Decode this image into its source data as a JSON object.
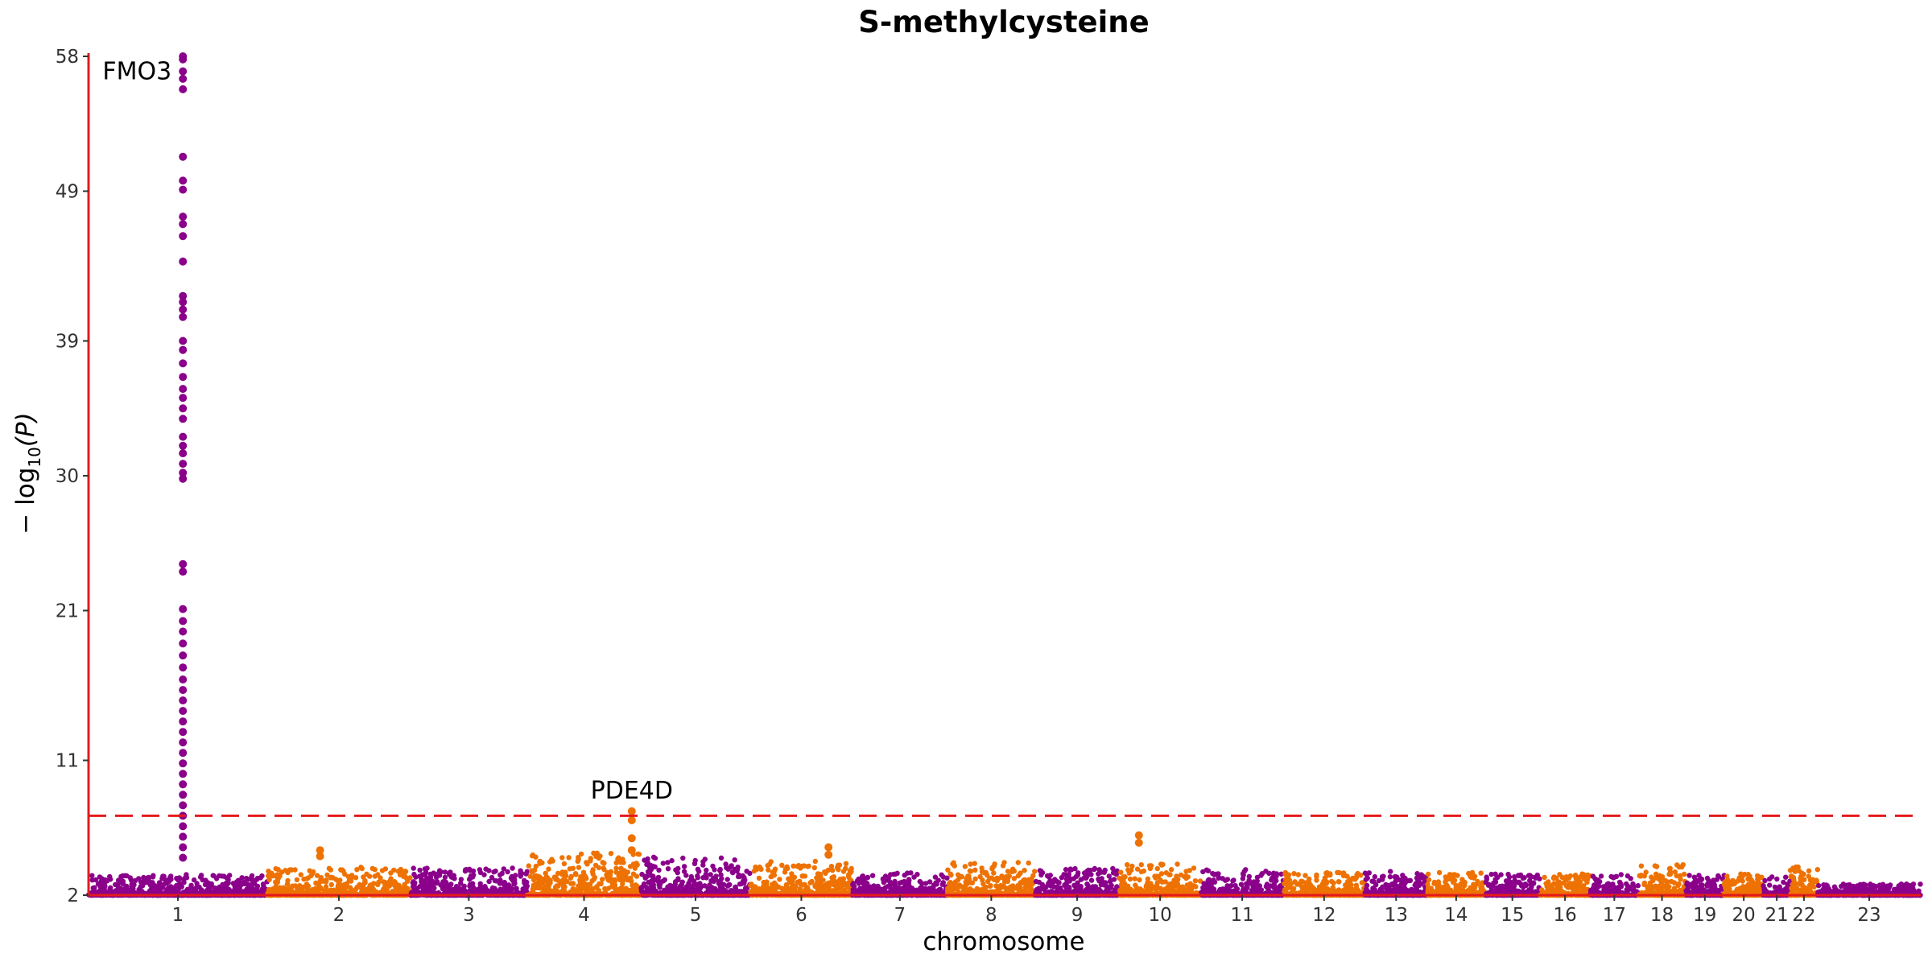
{
  "chart_data": {
    "type": "scatter",
    "title": "S-methylcysteine",
    "xlabel": "chromosome",
    "ylabel_prefix": "− log",
    "ylabel_sub": "10",
    "ylabel_suffix": "(P)",
    "ylim": [
      2,
      58
    ],
    "yticks": [
      2,
      11,
      21,
      30,
      39,
      49,
      58
    ],
    "threshold": 7.3,
    "colors": {
      "odd": "#8B008B",
      "even": "#EE7203",
      "axis": "#E41A1C",
      "threshold": "#E41A1C"
    },
    "chromosomes": [
      {
        "label": "1",
        "start": 0.0,
        "end": 133.5,
        "max": 3.4
      },
      {
        "label": "2",
        "start": 133.5,
        "end": 240.6,
        "max": 3.9
      },
      {
        "label": "3",
        "start": 240.6,
        "end": 327.8,
        "max": 3.9
      },
      {
        "label": "4",
        "start": 327.8,
        "end": 412.8,
        "max": 5.0
      },
      {
        "label": "5",
        "start": 412.8,
        "end": 494.5,
        "max": 4.7
      },
      {
        "label": "6",
        "start": 494.5,
        "end": 570.9,
        "max": 4.4
      },
      {
        "label": "7",
        "start": 570.9,
        "end": 641.8,
        "max": 3.6
      },
      {
        "label": "8",
        "start": 641.8,
        "end": 707.5,
        "max": 4.3
      },
      {
        "label": "9",
        "start": 707.5,
        "end": 770.2,
        "max": 3.9
      },
      {
        "label": "10",
        "start": 770.2,
        "end": 831.5,
        "max": 4.2
      },
      {
        "label": "11",
        "start": 831.5,
        "end": 892.9,
        "max": 3.8
      },
      {
        "label": "12",
        "start": 892.9,
        "end": 953.9,
        "max": 3.6
      },
      {
        "label": "13",
        "start": 953.9,
        "end": 1000.6,
        "max": 3.6
      },
      {
        "label": "14",
        "start": 1000.6,
        "end": 1043.6,
        "max": 3.6
      },
      {
        "label": "15",
        "start": 1043.6,
        "end": 1084.6,
        "max": 3.5
      },
      {
        "label": "16",
        "start": 1084.6,
        "end": 1122.3,
        "max": 3.5
      },
      {
        "label": "17",
        "start": 1122.3,
        "end": 1158.3,
        "max": 3.4
      },
      {
        "label": "18",
        "start": 1158.3,
        "end": 1193.5,
        "max": 4.2
      },
      {
        "label": "19",
        "start": 1193.5,
        "end": 1222.4,
        "max": 3.4
      },
      {
        "label": "20",
        "start": 1222.4,
        "end": 1251.7,
        "max": 3.5
      },
      {
        "label": "21",
        "start": 1251.7,
        "end": 1271.7,
        "max": 3.3
      },
      {
        "label": "22",
        "start": 1271.7,
        "end": 1292.3,
        "max": 4.0
      },
      {
        "label": "23",
        "start": 1292.3,
        "end": 1369.3,
        "max": 2.8
      }
    ],
    "peaks": [
      {
        "x": 70.5,
        "values": [
          58.0,
          57.8,
          57.0,
          56.5,
          55.8,
          51.3,
          49.7,
          49.1,
          47.3,
          46.8,
          46.0,
          44.3,
          42.0,
          41.6,
          41.1,
          40.6,
          39.0,
          38.4,
          37.5,
          36.6,
          35.8,
          35.2,
          34.5,
          33.8,
          32.6,
          32.0,
          31.5,
          30.8,
          30.2,
          29.8,
          24.1,
          23.6,
          21.1,
          20.3,
          19.6,
          18.8,
          18.0,
          17.2,
          16.4,
          15.7,
          15.0,
          14.3,
          13.6,
          12.9,
          12.2,
          11.5,
          10.8,
          10.1,
          9.4,
          8.7,
          8.0,
          7.3,
          6.6,
          5.9,
          5.2,
          4.5
        ]
      },
      {
        "x": 406.0,
        "values": [
          7.6,
          7.0,
          5.8,
          5.0
        ]
      },
      {
        "x": 553.0,
        "values": [
          5.2,
          4.7
        ]
      },
      {
        "x": 785.0,
        "values": [
          6.0,
          5.5
        ]
      },
      {
        "x": 173.0,
        "values": [
          5.0,
          4.6
        ]
      }
    ],
    "annotations": [
      {
        "text": "FMO3",
        "x": 70.5,
        "y": 57.0
      },
      {
        "text": "PDE4D",
        "x": 406.0,
        "y": 7.6
      }
    ]
  }
}
